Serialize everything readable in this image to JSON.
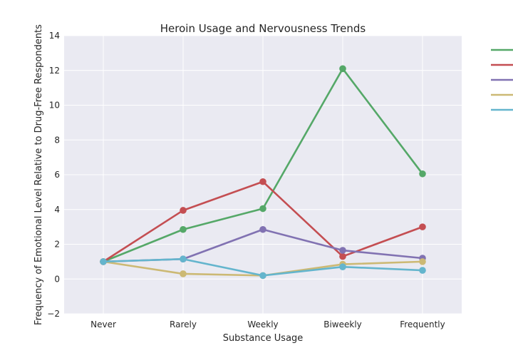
{
  "chart_data": {
    "type": "line",
    "title": "Heroin Usage and Nervousness Trends",
    "xlabel": "Substance Usage",
    "ylabel": "Frequency of Emotional Level Relative to Drug-Free Respondents",
    "categories": [
      "Never",
      "Rarely",
      "Weekly",
      "Biweekly",
      "Frequently"
    ],
    "ylim": [
      -2,
      14
    ],
    "yticks": [
      -2,
      0,
      2,
      4,
      6,
      8,
      10,
      12,
      14
    ],
    "ytick_labels": [
      "−2",
      "0",
      "2",
      "4",
      "6",
      "8",
      "10",
      "12",
      "14"
    ],
    "grid": true,
    "legend_position": "outside-right",
    "background": "#eaeaf2",
    "series": [
      {
        "name": "",
        "color": "#55a868",
        "values": [
          1.0,
          2.85,
          4.05,
          12.1,
          6.05
        ]
      },
      {
        "name": "",
        "color": "#c44e52",
        "values": [
          1.0,
          3.95,
          5.6,
          1.3,
          3.0
        ]
      },
      {
        "name": "",
        "color": "#8172b2",
        "values": [
          1.0,
          1.15,
          2.85,
          1.65,
          1.2
        ]
      },
      {
        "name": "",
        "color": "#ccb974",
        "values": [
          1.0,
          0.3,
          0.2,
          0.85,
          1.0
        ]
      },
      {
        "name": "",
        "color": "#64b5cd",
        "values": [
          1.0,
          1.15,
          0.2,
          0.7,
          0.5
        ]
      }
    ]
  }
}
